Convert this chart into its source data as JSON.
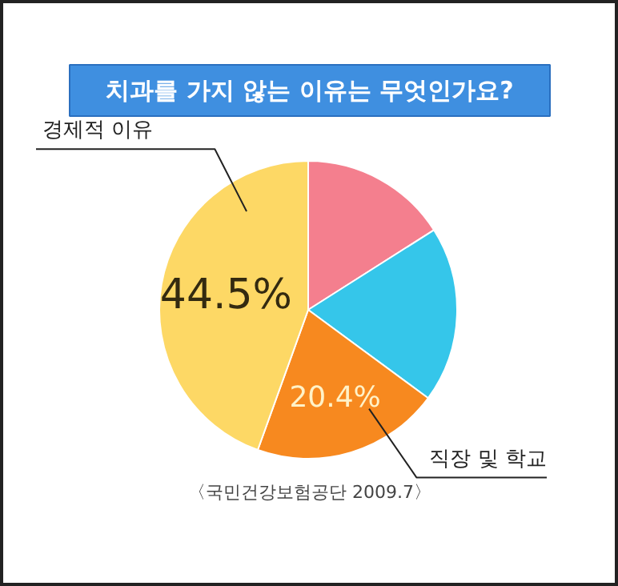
{
  "chart_data": {
    "type": "pie",
    "title": "치과를 가지 않는 이유는 무엇인가요?",
    "categories": [
      null,
      null,
      "직장 및 학교",
      "경제적 이유"
    ],
    "values": [
      16,
      19.1,
      20.4,
      44.5
    ],
    "colors": [
      "#f47f8e",
      "#35c6ea",
      "#f7891f",
      "#fdd865"
    ],
    "value_labels": [
      null,
      null,
      "20.4%",
      "44.5%"
    ],
    "annotations": [
      "〈국민건강보험공단 2009.7〉"
    ]
  }
}
